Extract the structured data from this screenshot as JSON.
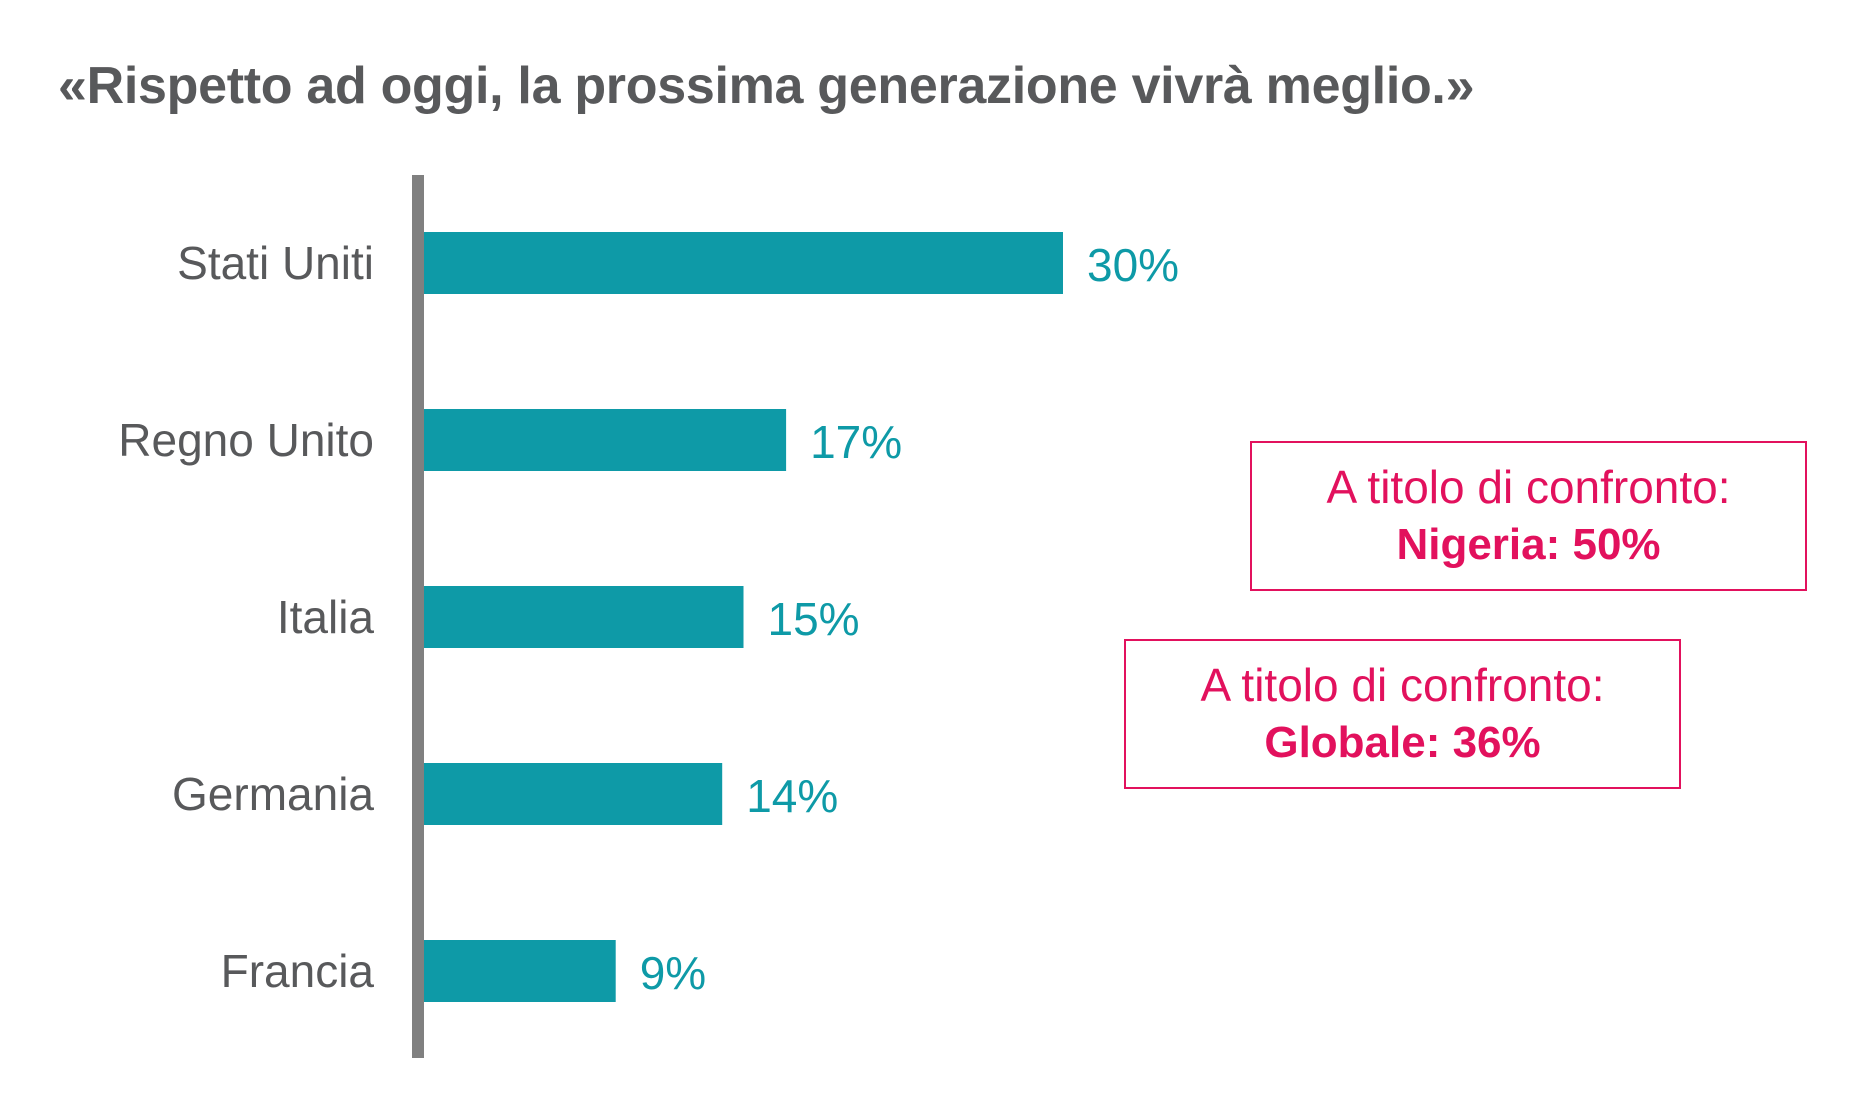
{
  "chart_data": {
    "type": "bar",
    "orientation": "horizontal",
    "title": "«Rispetto ad oggi, la prossima generazione vivrà meglio.»",
    "categories": [
      "Stati Uniti",
      "Regno Unito",
      "Italia",
      "Germania",
      "Francia"
    ],
    "values": [
      30,
      17,
      15,
      14,
      9
    ],
    "value_labels": [
      "30%",
      "17%",
      "15%",
      "14%",
      "9%"
    ],
    "unit": "%",
    "xlim": [
      0,
      30
    ],
    "grid": false,
    "legend": "none",
    "colors": {
      "bar": "#0e9aa7",
      "axis": "#808080",
      "category_text": "#58595b",
      "callout": "#e2115d"
    },
    "annotations": [
      {
        "line1": "A titolo di confronto:",
        "line2": "Nigeria: 50%"
      },
      {
        "line1": "A titolo di confronto:",
        "line2": "Globale: 36%"
      }
    ]
  }
}
